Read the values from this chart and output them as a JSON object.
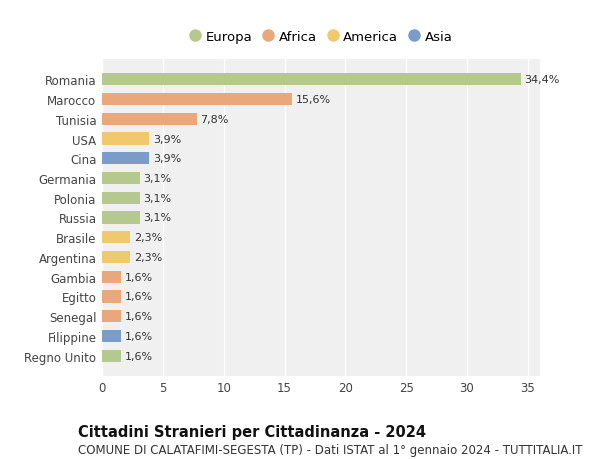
{
  "countries": [
    "Romania",
    "Marocco",
    "Tunisia",
    "USA",
    "Cina",
    "Germania",
    "Polonia",
    "Russia",
    "Brasile",
    "Argentina",
    "Gambia",
    "Egitto",
    "Senegal",
    "Filippine",
    "Regno Unito"
  ],
  "values": [
    34.4,
    15.6,
    7.8,
    3.9,
    3.9,
    3.1,
    3.1,
    3.1,
    2.3,
    2.3,
    1.6,
    1.6,
    1.6,
    1.6,
    1.6
  ],
  "labels": [
    "34,4%",
    "15,6%",
    "7,8%",
    "3,9%",
    "3,9%",
    "3,1%",
    "3,1%",
    "3,1%",
    "2,3%",
    "2,3%",
    "1,6%",
    "1,6%",
    "1,6%",
    "1,6%",
    "1,6%"
  ],
  "continents": [
    "Europa",
    "Africa",
    "Africa",
    "America",
    "Asia",
    "Europa",
    "Europa",
    "Europa",
    "America",
    "America",
    "Africa",
    "Africa",
    "Africa",
    "Asia",
    "Europa"
  ],
  "continent_colors": {
    "Europa": "#b5c98e",
    "Africa": "#e8a87c",
    "America": "#f0c96e",
    "Asia": "#7b9bc8"
  },
  "legend_order": [
    "Europa",
    "Africa",
    "America",
    "Asia"
  ],
  "xlim": [
    0,
    36
  ],
  "xticks": [
    0,
    5,
    10,
    15,
    20,
    25,
    30,
    35
  ],
  "title": "Cittadini Stranieri per Cittadinanza - 2024",
  "subtitle": "COMUNE DI CALATAFIMI-SEGESTA (TP) - Dati ISTAT al 1° gennaio 2024 - TUTTITALIA.IT",
  "title_fontsize": 10.5,
  "subtitle_fontsize": 8.5,
  "plot_bg_color": "#f0f0f0",
  "fig_bg_color": "#ffffff",
  "grid_color": "#ffffff",
  "bar_height": 0.62
}
